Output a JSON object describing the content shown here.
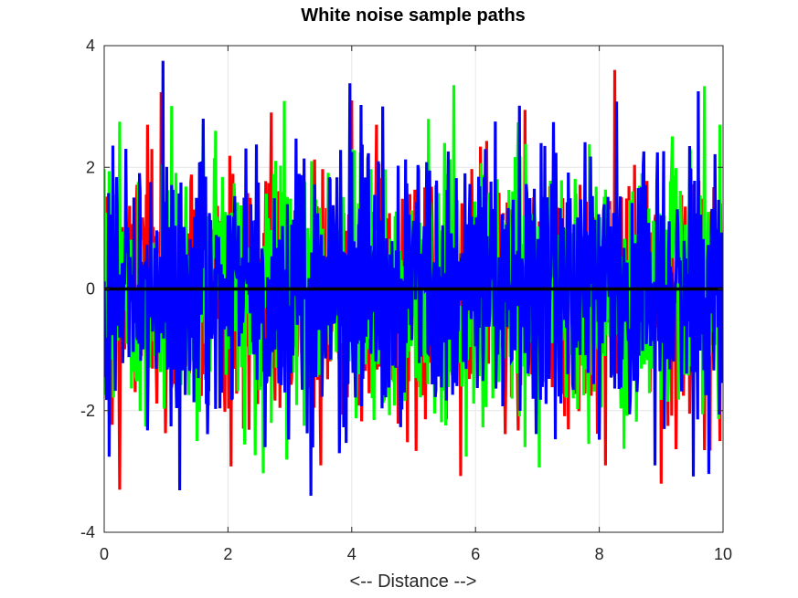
{
  "chart_data": {
    "type": "line",
    "title": "White noise sample paths",
    "xlabel": "<-- Distance -->",
    "ylabel": "",
    "xlim": [
      0,
      10
    ],
    "ylim": [
      -4,
      4
    ],
    "xticks": [
      0,
      2,
      4,
      6,
      8,
      10
    ],
    "xtick_labels": [
      "0",
      "2",
      "4",
      "6",
      "8",
      "10"
    ],
    "yticks": [
      -4,
      -2,
      0,
      2,
      4
    ],
    "ytick_labels": [
      "-4",
      "-2",
      "0",
      "2",
      "4"
    ],
    "grid": true,
    "legend": "none",
    "sample_count": 1001,
    "series": [
      {
        "color": "#ff0000",
        "distribution": "standard normal, mean 0, std 1",
        "notable_points": [
          {
            "x": 0.25,
            "y": -3.3
          },
          {
            "x": 0.7,
            "y": 2.7
          },
          {
            "x": 2.7,
            "y": 2.9
          },
          {
            "x": 3.5,
            "y": -2.9
          },
          {
            "x": 4.0,
            "y": 3.1
          },
          {
            "x": 4.4,
            "y": 2.7
          },
          {
            "x": 8.25,
            "y": 3.6
          },
          {
            "x": 8.1,
            "y": -2.9
          },
          {
            "x": 9.0,
            "y": -3.2
          },
          {
            "x": 9.7,
            "y": -2.65
          },
          {
            "x": 9.95,
            "y": -2.5
          }
        ]
      },
      {
        "color": "#00ff00",
        "distribution": "standard normal, mean 0, std 1",
        "notable_points": [
          {
            "x": 0.25,
            "y": 2.75
          },
          {
            "x": 1.5,
            "y": -2.5
          },
          {
            "x": 1.8,
            "y": 2.6
          },
          {
            "x": 2.7,
            "y": -2.2
          },
          {
            "x": 4.0,
            "y": 2.3
          },
          {
            "x": 5.5,
            "y": 2.4
          },
          {
            "x": 6.8,
            "y": -2.6
          },
          {
            "x": 9.95,
            "y": 2.7
          }
        ]
      },
      {
        "color": "#0000ff",
        "distribution": "standard normal, mean 0, std 1",
        "notable_points": [
          {
            "x": 0.95,
            "y": 3.75
          },
          {
            "x": 1.6,
            "y": -2.55
          },
          {
            "x": 1.6,
            "y": 2.8
          },
          {
            "x": 2.6,
            "y": -2.6
          },
          {
            "x": 3.8,
            "y": -2.7
          },
          {
            "x": 4.5,
            "y": 3.0
          },
          {
            "x": 8.9,
            "y": -2.9
          },
          {
            "x": 9.6,
            "y": 3.25
          }
        ]
      }
    ],
    "reference_line": {
      "y": 0,
      "color": "#000000"
    }
  }
}
